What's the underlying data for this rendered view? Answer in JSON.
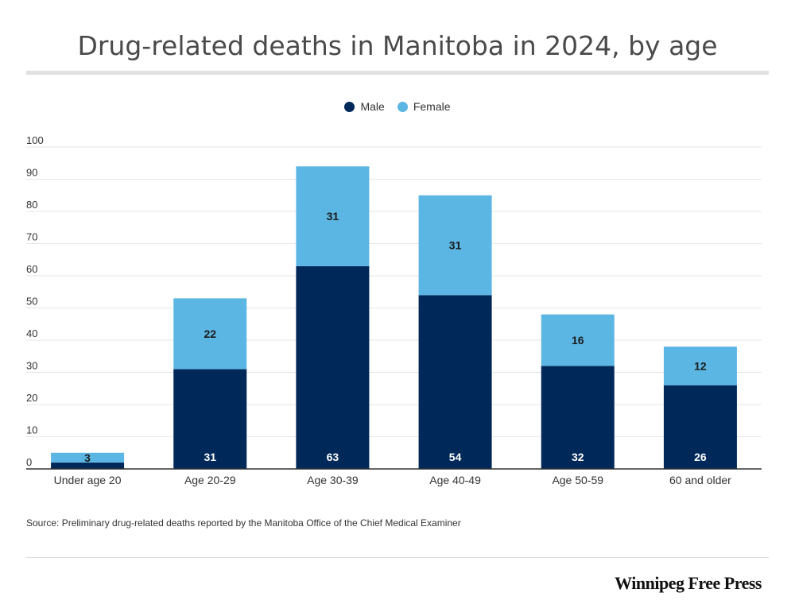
{
  "chart_data": {
    "type": "bar",
    "stacked": true,
    "title": "Drug-related deaths in Manitoba in 2024, by age",
    "categories": [
      "Under age 20",
      "Age 20-29",
      "Age 30-39",
      "Age 40-49",
      "Age 50-59",
      "60 and older"
    ],
    "series": [
      {
        "name": "Male",
        "color": "#00295a",
        "values": [
          2,
          31,
          63,
          54,
          32,
          26
        ]
      },
      {
        "name": "Female",
        "color": "#5cb6e4",
        "values": [
          3,
          22,
          31,
          31,
          16,
          12
        ]
      }
    ],
    "ylim": [
      0,
      100
    ],
    "yticks": [
      0,
      10,
      20,
      30,
      40,
      50,
      60,
      70,
      80,
      90,
      100
    ],
    "grid": true,
    "legend_position": "top-center"
  },
  "source_text": "Source: Preliminary drug-related deaths reported by the Manitoba Office of the Chief Medical Examiner",
  "brand": "Winnipeg Free Press"
}
